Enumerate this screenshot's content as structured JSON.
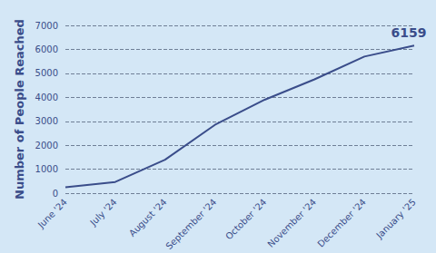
{
  "chart_data": {
    "type": "line",
    "y_label": "Number of People Reached",
    "categories": [
      "June '24",
      "July '24",
      "August '24",
      "September '24",
      "October '24",
      "November '24",
      "December '24",
      "January '25"
    ],
    "values": [
      250,
      470,
      1400,
      2850,
      3900,
      4750,
      5700,
      6159
    ],
    "color": "#3a4d8a",
    "ylim": [
      0,
      7000
    ],
    "yticks": [
      0,
      1000,
      2000,
      3000,
      4000,
      5000,
      6000,
      7000
    ],
    "grid": true,
    "annotations": [
      {
        "x": "January '25",
        "y": 6159,
        "text": "6159"
      }
    ]
  }
}
